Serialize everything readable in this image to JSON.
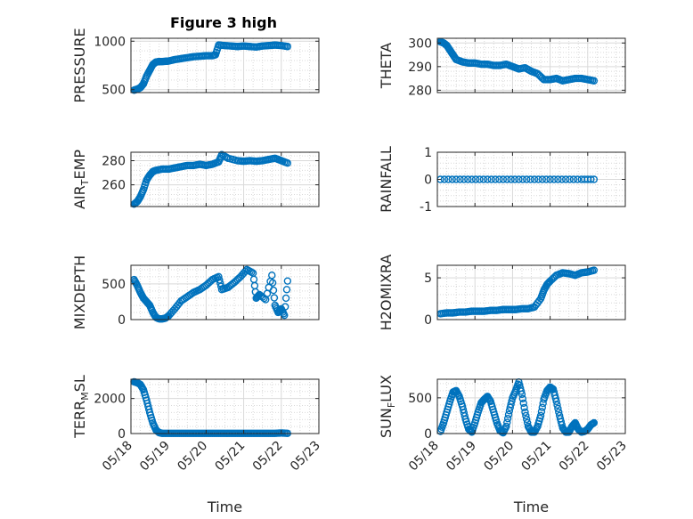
{
  "figure_title": "Figure 3 high",
  "colors": {
    "marker": "#0072BD",
    "axis": "#262626",
    "grid": "#d9d9d9"
  },
  "chart_data": [
    {
      "type": "scatter",
      "title": "Figure 3 high",
      "ylabel": "PRESSURE",
      "xlabel": "",
      "xlim": [
        "05/18",
        "05/23"
      ],
      "ylim": [
        470,
        1030
      ],
      "yticks": [
        500,
        1000
      ],
      "grid": true,
      "marker": "open-circle",
      "x": [
        "05/18 02:00",
        "05/18 04:00",
        "05/18 06:00",
        "05/18 08:00",
        "05/18 10:00",
        "05/18 12:00",
        "05/18 14:00",
        "05/18 16:00",
        "05/18 18:00",
        "05/18 20:00",
        "05/18 22:00",
        "05/19 00:00",
        "05/19 04:00",
        "05/19 08:00",
        "05/19 12:00",
        "05/19 16:00",
        "05/19 20:00",
        "05/20 00:00",
        "05/20 04:00",
        "05/20 06:00",
        "05/20 08:00",
        "05/20 12:00",
        "05/20 16:00",
        "05/20 20:00",
        "05/21 00:00",
        "05/21 04:00",
        "05/21 08:00",
        "05/21 12:00",
        "05/21 16:00",
        "05/21 20:00",
        "05/22 00:00",
        "05/22 04:00"
      ],
      "y": [
        495,
        505,
        520,
        560,
        640,
        700,
        760,
        785,
        790,
        790,
        792,
        795,
        810,
        820,
        830,
        840,
        845,
        850,
        850,
        860,
        960,
        955,
        950,
        945,
        950,
        945,
        940,
        950,
        955,
        960,
        955,
        945
      ]
    },
    {
      "type": "scatter",
      "title": "",
      "ylabel": "THETA",
      "xlabel": "",
      "xlim": [
        "05/18",
        "05/23"
      ],
      "ylim": [
        279,
        302
      ],
      "yticks": [
        280,
        290,
        300
      ],
      "grid": true,
      "marker": "open-circle",
      "x": [
        "05/18 02:00",
        "05/18 04:00",
        "05/18 06:00",
        "05/18 08:00",
        "05/18 10:00",
        "05/18 12:00",
        "05/18 16:00",
        "05/18 20:00",
        "05/19 00:00",
        "05/19 04:00",
        "05/19 08:00",
        "05/19 12:00",
        "05/19 16:00",
        "05/19 20:00",
        "05/20 00:00",
        "05/20 04:00",
        "05/20 08:00",
        "05/20 12:00",
        "05/20 16:00",
        "05/20 20:00",
        "05/21 00:00",
        "05/21 04:00",
        "05/21 08:00",
        "05/21 12:00",
        "05/21 16:00",
        "05/21 20:00",
        "05/22 00:00",
        "05/22 04:00"
      ],
      "y": [
        300.5,
        300,
        299,
        297,
        295,
        293,
        292,
        291.5,
        291.5,
        291,
        291,
        290.5,
        290.5,
        291,
        290,
        289,
        289.5,
        288,
        287,
        284.5,
        284.5,
        285,
        284,
        284.5,
        285,
        285,
        284.5,
        284
      ]
    },
    {
      "type": "scatter",
      "title": "",
      "ylabel": "AIR_TEMP",
      "xlabel": "",
      "xlim": [
        "05/18",
        "05/23"
      ],
      "ylim": [
        242,
        287
      ],
      "yticks": [
        260,
        280
      ],
      "grid": true,
      "marker": "open-circle",
      "x": [
        "05/18 02:00",
        "05/18 04:00",
        "05/18 06:00",
        "05/18 08:00",
        "05/18 10:00",
        "05/18 12:00",
        "05/18 14:00",
        "05/18 16:00",
        "05/18 20:00",
        "05/19 00:00",
        "05/19 04:00",
        "05/19 08:00",
        "05/19 12:00",
        "05/19 16:00",
        "05/19 20:00",
        "05/20 00:00",
        "05/20 04:00",
        "05/20 08:00",
        "05/20 10:00",
        "05/20 14:00",
        "05/20 20:00",
        "05/21 00:00",
        "05/21 04:00",
        "05/21 08:00",
        "05/21 12:00",
        "05/21 16:00",
        "05/21 20:00",
        "05/22 00:00",
        "05/22 04:00"
      ],
      "y": [
        244,
        246,
        250,
        256,
        264,
        268,
        271,
        272,
        273,
        273,
        274,
        275,
        276,
        276,
        277,
        276,
        277,
        279,
        285,
        282,
        280,
        279.5,
        280,
        279.5,
        280,
        281,
        282,
        280,
        278
      ]
    },
    {
      "type": "scatter",
      "title": "",
      "ylabel": "RAINFALL",
      "xlabel": "",
      "xlim": [
        "05/18",
        "05/23"
      ],
      "ylim": [
        -1,
        1
      ],
      "yticks": [
        -1,
        0,
        1
      ],
      "grid": true,
      "marker": "open-circle",
      "x": [
        "05/18 02:00",
        "05/18 12:00",
        "05/18 22:00",
        "05/19 08:00",
        "05/19 18:00",
        "05/20 04:00",
        "05/20 14:00",
        "05/21 00:00",
        "05/21 10:00",
        "05/21 20:00",
        "05/22 04:00"
      ],
      "y": [
        0,
        0,
        0,
        0,
        0,
        0,
        0,
        0,
        0,
        0,
        0
      ]
    },
    {
      "type": "scatter",
      "title": "",
      "ylabel": "MIXDEPTH",
      "xlabel": "",
      "xlim": [
        "05/18",
        "05/23"
      ],
      "ylim": [
        0,
        760
      ],
      "yticks": [
        0,
        500
      ],
      "grid": true,
      "marker": "open-circle",
      "x": [
        "05/18 02:00",
        "05/18 04:00",
        "05/18 06:00",
        "05/18 08:00",
        "05/18 10:00",
        "05/18 12:00",
        "05/18 14:00",
        "05/18 16:00",
        "05/18 18:00",
        "05/18 20:00",
        "05/18 22:00",
        "05/19 00:00",
        "05/19 04:00",
        "05/19 08:00",
        "05/19 12:00",
        "05/19 16:00",
        "05/19 20:00",
        "05/20 00:00",
        "05/20 04:00",
        "05/20 08:00",
        "05/20 10:00",
        "05/20 14:00",
        "05/20 18:00",
        "05/20 22:00",
        "05/21 02:00",
        "05/21 06:00",
        "05/21 08:00",
        "05/21 10:00",
        "05/21 14:00",
        "05/21 18:00",
        "05/21 20:00",
        "05/21 22:00",
        "05/22 00:00",
        "05/22 02:00",
        "05/22 04:00"
      ],
      "y": [
        560,
        480,
        380,
        300,
        250,
        200,
        100,
        30,
        10,
        10,
        20,
        50,
        150,
        260,
        320,
        380,
        420,
        480,
        560,
        600,
        420,
        450,
        520,
        600,
        700,
        650,
        300,
        350,
        280,
        620,
        200,
        100,
        150,
        60,
        540
      ]
    },
    {
      "type": "scatter",
      "title": "",
      "ylabel": "H2OMIXRA",
      "xlabel": "",
      "xlim": [
        "05/18",
        "05/23"
      ],
      "ylim": [
        0,
        6.5
      ],
      "yticks": [
        0,
        5
      ],
      "grid": true,
      "marker": "open-circle",
      "x": [
        "05/18 02:00",
        "05/18 06:00",
        "05/18 10:00",
        "05/18 14:00",
        "05/18 18:00",
        "05/18 22:00",
        "05/19 02:00",
        "05/19 06:00",
        "05/19 10:00",
        "05/19 14:00",
        "05/19 18:00",
        "05/19 22:00",
        "05/20 02:00",
        "05/20 06:00",
        "05/20 10:00",
        "05/20 14:00",
        "05/20 18:00",
        "05/20 20:00",
        "05/20 22:00",
        "05/21 00:00",
        "05/21 04:00",
        "05/21 08:00",
        "05/21 12:00",
        "05/21 16:00",
        "05/21 20:00",
        "05/22 00:00",
        "05/22 04:00"
      ],
      "y": [
        0.7,
        0.8,
        0.8,
        0.9,
        0.9,
        1.0,
        1.0,
        1.0,
        1.1,
        1.1,
        1.2,
        1.2,
        1.2,
        1.3,
        1.3,
        1.5,
        2.5,
        3.5,
        4.2,
        4.6,
        5.3,
        5.6,
        5.5,
        5.3,
        5.6,
        5.7,
        5.9
      ]
    },
    {
      "type": "scatter",
      "title": "",
      "ylabel": "TERR_MSL",
      "xlabel": "Time",
      "xlim": [
        "05/18",
        "05/23"
      ],
      "ylim": [
        0,
        3100
      ],
      "yticks": [
        0,
        2000
      ],
      "xticks": [
        "05/18",
        "05/19",
        "05/20",
        "05/21",
        "05/22",
        "05/23"
      ],
      "grid": true,
      "marker": "open-circle",
      "x": [
        "05/18 02:00",
        "05/18 04:00",
        "05/18 06:00",
        "05/18 08:00",
        "05/18 10:00",
        "05/18 12:00",
        "05/18 14:00",
        "05/18 16:00",
        "05/18 18:00",
        "05/18 20:00",
        "05/19 00:00",
        "05/19 04:00",
        "05/19 08:00",
        "05/19 12:00",
        "05/19 16:00",
        "05/19 20:00",
        "05/20 00:00",
        "05/20 04:00",
        "05/20 08:00",
        "05/20 12:00",
        "05/20 16:00",
        "05/20 20:00",
        "05/21 00:00",
        "05/21 04:00",
        "05/21 08:00",
        "05/21 12:00",
        "05/21 16:00",
        "05/21 20:00",
        "05/22 00:00",
        "05/22 04:00"
      ],
      "y": [
        2950,
        2900,
        2800,
        2500,
        1900,
        1200,
        600,
        200,
        50,
        10,
        10,
        10,
        10,
        10,
        10,
        10,
        10,
        10,
        10,
        10,
        10,
        10,
        10,
        10,
        10,
        10,
        10,
        10,
        30,
        10
      ]
    },
    {
      "type": "scatter",
      "title": "",
      "ylabel": "SUN_FLUX",
      "xlabel": "Time",
      "xlim": [
        "05/18",
        "05/23"
      ],
      "ylim": [
        0,
        760
      ],
      "yticks": [
        0,
        500
      ],
      "xticks": [
        "05/18",
        "05/19",
        "05/20",
        "05/21",
        "05/22",
        "05/23"
      ],
      "grid": true,
      "marker": "open-circle",
      "x": [
        "05/18 02:00",
        "05/18 04:00",
        "05/18 06:00",
        "05/18 08:00",
        "05/18 10:00",
        "05/18 12:00",
        "05/18 14:00",
        "05/18 16:00",
        "05/18 18:00",
        "05/18 20:00",
        "05/18 22:00",
        "05/19 00:00",
        "05/19 02:00",
        "05/19 04:00",
        "05/19 06:00",
        "05/19 08:00",
        "05/19 10:00",
        "05/19 12:00",
        "05/19 14:00",
        "05/19 16:00",
        "05/19 18:00",
        "05/19 20:00",
        "05/19 22:00",
        "05/20 00:00",
        "05/20 02:00",
        "05/20 04:00",
        "05/20 06:00",
        "05/20 08:00",
        "05/20 10:00",
        "05/20 12:00",
        "05/20 14:00",
        "05/20 16:00",
        "05/20 18:00",
        "05/20 20:00",
        "05/20 22:00",
        "05/21 00:00",
        "05/21 02:00",
        "05/21 04:00",
        "05/21 06:00",
        "05/21 08:00",
        "05/21 10:00",
        "05/21 12:00",
        "05/21 14:00",
        "05/21 16:00",
        "05/21 18:00",
        "05/21 20:00",
        "05/21 22:00",
        "05/22 00:00",
        "05/22 02:00",
        "05/22 04:00"
      ],
      "y": [
        30,
        150,
        300,
        450,
        580,
        600,
        520,
        380,
        200,
        60,
        20,
        150,
        300,
        430,
        480,
        520,
        450,
        300,
        150,
        40,
        10,
        100,
        320,
        500,
        600,
        720,
        550,
        300,
        100,
        20,
        20,
        100,
        250,
        480,
        600,
        650,
        620,
        450,
        250,
        80,
        20,
        20,
        100,
        150,
        60,
        20,
        30,
        60,
        120,
        150
      ]
    }
  ]
}
